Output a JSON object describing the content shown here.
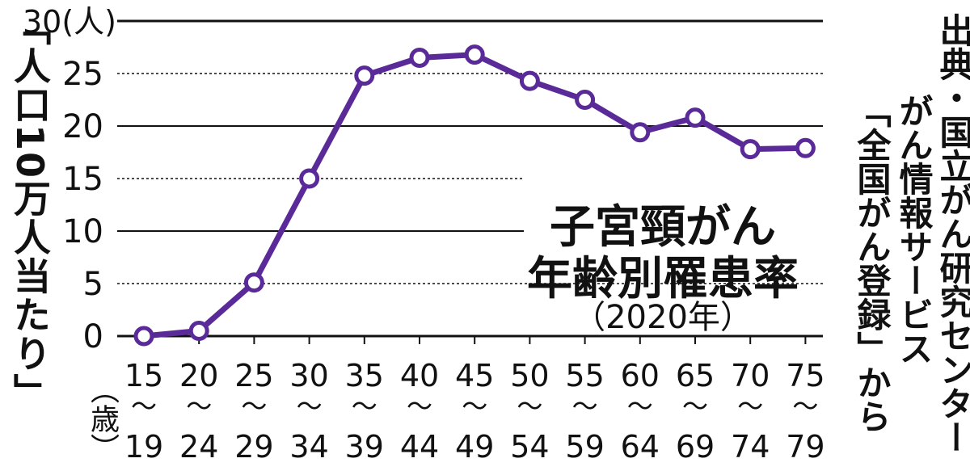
{
  "chart_data": {
    "type": "line",
    "title": "子宮頸がん",
    "title_line2": "年齢別罹患率",
    "subtitle": "（2020年）",
    "ylabel": "「人口10万人当たり」",
    "xlabel": "（歳）",
    "y_unit_label": "30(人)",
    "ylim": [
      0,
      30
    ],
    "yticks": [
      "0",
      "5",
      "10",
      "15",
      "20",
      "25"
    ],
    "x": [
      {
        "top": "15",
        "sep": "〜",
        "bottom": "19"
      },
      {
        "top": "20",
        "sep": "〜",
        "bottom": "24"
      },
      {
        "top": "25",
        "sep": "〜",
        "bottom": "29"
      },
      {
        "top": "30",
        "sep": "〜",
        "bottom": "34"
      },
      {
        "top": "35",
        "sep": "〜",
        "bottom": "39"
      },
      {
        "top": "40",
        "sep": "〜",
        "bottom": "44"
      },
      {
        "top": "45",
        "sep": "〜",
        "bottom": "49"
      },
      {
        "top": "50",
        "sep": "〜",
        "bottom": "54"
      },
      {
        "top": "55",
        "sep": "〜",
        "bottom": "59"
      },
      {
        "top": "60",
        "sep": "〜",
        "bottom": "64"
      },
      {
        "top": "65",
        "sep": "〜",
        "bottom": "69"
      },
      {
        "top": "70",
        "sep": "〜",
        "bottom": "74"
      },
      {
        "top": "75",
        "sep": "〜",
        "bottom": "79"
      }
    ],
    "series": [
      {
        "values": [
          0.0,
          0.5,
          5.1,
          15.0,
          24.8,
          26.5,
          26.8,
          24.3,
          22.5,
          19.4,
          20.8,
          17.8,
          17.9
        ]
      }
    ],
    "line_color": "#5a2a99",
    "grid": "solid at 10/20/30, dotted at 5/15/25",
    "source": [
      "出典・国立がん研究センター",
      "がん情報サービス",
      "「全国がん登録」から"
    ]
  }
}
